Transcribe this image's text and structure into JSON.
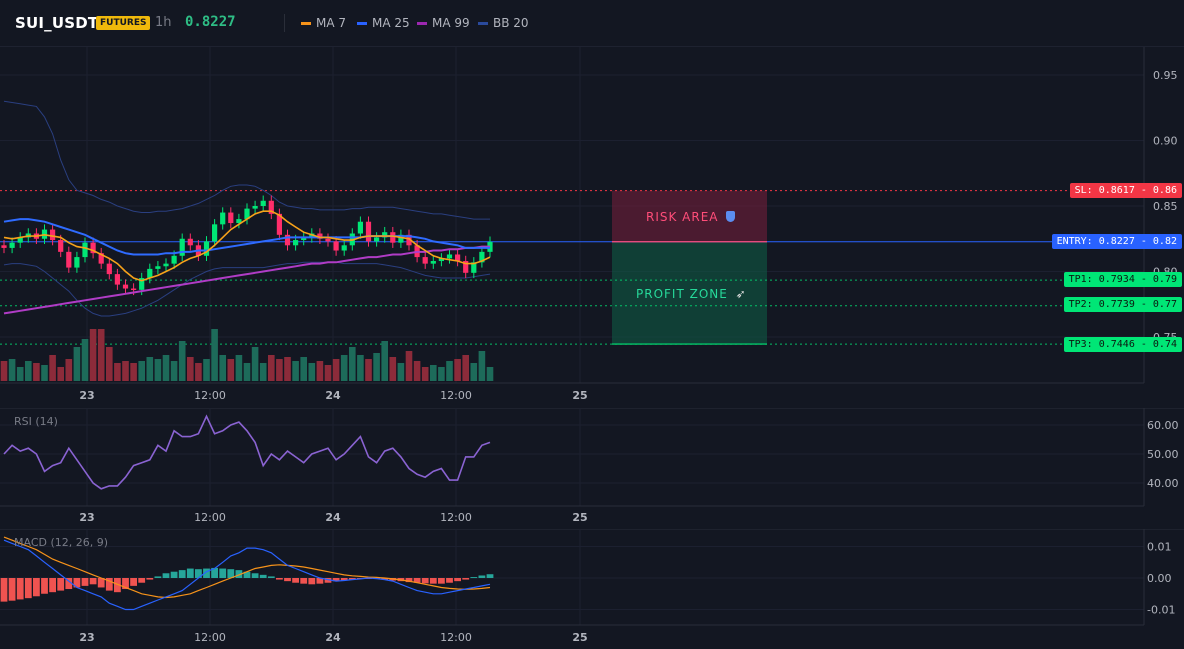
{
  "header": {
    "symbol": "SUI_USDT",
    "badge": "FUTURES",
    "timeframe": "1h",
    "last_price": "0.8227",
    "legend": [
      {
        "label": "MA 7",
        "color": "#f7931a"
      },
      {
        "label": "MA 25",
        "color": "#2962ff"
      },
      {
        "label": "MA 99",
        "color": "#9c27b0"
      },
      {
        "label": "BB 20",
        "color": "#2a4a9c"
      }
    ]
  },
  "zones": {
    "risk_label": "RISK AREA",
    "risk_icon": "shield-icon",
    "profit_label": "PROFIT ZONE",
    "profit_icon": "rocket-icon"
  },
  "levels": {
    "sl": "SL: 0.8617 - 0.86",
    "entry": "ENTRY: 0.8227 - 0.82",
    "tp1": "TP1: 0.7934 - 0.79",
    "tp2": "TP2: 0.7739 - 0.77",
    "tp3": "TP3: 0.7446 - 0.74",
    "colors": {
      "sl": "#f23645",
      "entry": "#2962ff",
      "tp": "#00e676"
    }
  },
  "rsi_label": "RSI (14)",
  "macd_label": "MACD (12, 26, 9)",
  "chart_data": [
    {
      "type": "candlestick",
      "title": "SUI_USDT",
      "xticks": [
        "23",
        "12:00",
        "24",
        "12:00",
        "25"
      ],
      "yticks": [
        "0.95",
        "0.90",
        "0.85",
        "0.80",
        "0.75"
      ],
      "ylim": [
        0.72,
        0.97
      ],
      "close": [
        0.818,
        0.822,
        0.826,
        0.829,
        0.825,
        0.832,
        0.824,
        0.815,
        0.803,
        0.811,
        0.822,
        0.814,
        0.806,
        0.798,
        0.79,
        0.787,
        0.786,
        0.795,
        0.802,
        0.804,
        0.806,
        0.812,
        0.825,
        0.82,
        0.812,
        0.823,
        0.836,
        0.845,
        0.837,
        0.84,
        0.848,
        0.85,
        0.854,
        0.844,
        0.828,
        0.82,
        0.824,
        0.826,
        0.829,
        0.825,
        0.823,
        0.816,
        0.82,
        0.829,
        0.838,
        0.823,
        0.826,
        0.83,
        0.822,
        0.828,
        0.82,
        0.811,
        0.806,
        0.808,
        0.81,
        0.813,
        0.808,
        0.799,
        0.807,
        0.815,
        0.8227
      ],
      "open": [
        0.82,
        0.818,
        0.822,
        0.826,
        0.829,
        0.825,
        0.832,
        0.824,
        0.815,
        0.803,
        0.811,
        0.822,
        0.814,
        0.806,
        0.798,
        0.79,
        0.787,
        0.786,
        0.795,
        0.802,
        0.804,
        0.806,
        0.812,
        0.825,
        0.82,
        0.812,
        0.823,
        0.836,
        0.845,
        0.837,
        0.84,
        0.848,
        0.85,
        0.854,
        0.844,
        0.828,
        0.82,
        0.824,
        0.826,
        0.829,
        0.825,
        0.823,
        0.816,
        0.82,
        0.829,
        0.838,
        0.823,
        0.826,
        0.83,
        0.822,
        0.828,
        0.82,
        0.811,
        0.806,
        0.808,
        0.81,
        0.813,
        0.808,
        0.799,
        0.807,
        0.815
      ],
      "volume": [
        20,
        22,
        14,
        20,
        18,
        16,
        26,
        14,
        22,
        34,
        42,
        52,
        52,
        34,
        18,
        20,
        18,
        20,
        24,
        22,
        26,
        20,
        40,
        24,
        18,
        22,
        52,
        26,
        22,
        26,
        18,
        34,
        18,
        26,
        22,
        24,
        20,
        24,
        18,
        20,
        16,
        22,
        26,
        34,
        26,
        22,
        28,
        40,
        24,
        18,
        30,
        20,
        14,
        16,
        14,
        20,
        22,
        26,
        18,
        30,
        14
      ],
      "ma7": [
        0.826,
        0.825,
        0.826,
        0.827,
        0.827,
        0.828,
        0.827,
        0.826,
        0.822,
        0.819,
        0.818,
        0.816,
        0.813,
        0.81,
        0.806,
        0.8,
        0.795,
        0.793,
        0.795,
        0.797,
        0.8,
        0.803,
        0.807,
        0.81,
        0.812,
        0.815,
        0.82,
        0.826,
        0.832,
        0.836,
        0.84,
        0.844,
        0.846,
        0.846,
        0.843,
        0.838,
        0.834,
        0.83,
        0.828,
        0.826,
        0.826,
        0.825,
        0.824,
        0.824,
        0.826,
        0.827,
        0.827,
        0.827,
        0.827,
        0.826,
        0.825,
        0.82,
        0.816,
        0.812,
        0.81,
        0.809,
        0.808,
        0.806,
        0.806,
        0.808,
        0.811
      ],
      "ma25": [
        0.838,
        0.839,
        0.84,
        0.84,
        0.839,
        0.838,
        0.836,
        0.834,
        0.832,
        0.83,
        0.828,
        0.825,
        0.822,
        0.819,
        0.816,
        0.814,
        0.813,
        0.813,
        0.813,
        0.813,
        0.814,
        0.814,
        0.815,
        0.815,
        0.816,
        0.816,
        0.817,
        0.818,
        0.819,
        0.82,
        0.821,
        0.822,
        0.823,
        0.824,
        0.825,
        0.826,
        0.826,
        0.826,
        0.826,
        0.826,
        0.826,
        0.826,
        0.826,
        0.826,
        0.826,
        0.827,
        0.827,
        0.827,
        0.827,
        0.827,
        0.827,
        0.826,
        0.825,
        0.823,
        0.822,
        0.821,
        0.82,
        0.818,
        0.818,
        0.818,
        0.818
      ],
      "ma99": [
        0.768,
        0.769,
        0.77,
        0.771,
        0.772,
        0.773,
        0.774,
        0.775,
        0.776,
        0.777,
        0.778,
        0.779,
        0.78,
        0.781,
        0.782,
        0.783,
        0.784,
        0.785,
        0.786,
        0.787,
        0.788,
        0.789,
        0.79,
        0.791,
        0.792,
        0.793,
        0.794,
        0.795,
        0.796,
        0.797,
        0.798,
        0.799,
        0.8,
        0.801,
        0.802,
        0.803,
        0.804,
        0.805,
        0.806,
        0.806,
        0.807,
        0.807,
        0.808,
        0.809,
        0.81,
        0.811,
        0.811,
        0.812,
        0.813,
        0.813,
        0.814,
        0.815,
        0.815,
        0.816,
        0.816,
        0.817,
        0.817,
        0.818,
        0.818,
        0.819,
        0.819
      ],
      "bb_upper": [
        0.93,
        0.929,
        0.928,
        0.927,
        0.926,
        0.918,
        0.905,
        0.885,
        0.87,
        0.862,
        0.86,
        0.858,
        0.855,
        0.853,
        0.85,
        0.848,
        0.846,
        0.845,
        0.845,
        0.846,
        0.846,
        0.847,
        0.848,
        0.85,
        0.852,
        0.855,
        0.858,
        0.862,
        0.865,
        0.866,
        0.866,
        0.865,
        0.862,
        0.858,
        0.853,
        0.85,
        0.849,
        0.848,
        0.848,
        0.847,
        0.847,
        0.847,
        0.847,
        0.848,
        0.848,
        0.849,
        0.849,
        0.849,
        0.849,
        0.848,
        0.847,
        0.846,
        0.845,
        0.844,
        0.844,
        0.843,
        0.842,
        0.841,
        0.84,
        0.84,
        0.84
      ],
      "bb_lower": [
        0.805,
        0.806,
        0.806,
        0.805,
        0.804,
        0.8,
        0.795,
        0.79,
        0.785,
        0.778,
        0.772,
        0.768,
        0.766,
        0.766,
        0.767,
        0.768,
        0.77,
        0.772,
        0.775,
        0.778,
        0.782,
        0.786,
        0.79,
        0.794,
        0.797,
        0.8,
        0.802,
        0.803,
        0.803,
        0.803,
        0.803,
        0.803,
        0.803,
        0.804,
        0.805,
        0.806,
        0.806,
        0.807,
        0.807,
        0.807,
        0.807,
        0.807,
        0.806,
        0.806,
        0.806,
        0.806,
        0.806,
        0.805,
        0.804,
        0.803,
        0.801,
        0.799,
        0.797,
        0.796,
        0.795,
        0.795,
        0.795,
        0.795,
        0.796,
        0.797,
        0.798
      ]
    },
    {
      "type": "line",
      "title": "RSI (14)",
      "xticks": [
        "23",
        "12:00",
        "24",
        "12:00",
        "25"
      ],
      "yticks": [
        "60.00",
        "50.00",
        "40.00"
      ],
      "ylim": [
        32,
        68
      ],
      "values": [
        50,
        53,
        51,
        52,
        50,
        44,
        46,
        47,
        52,
        48,
        44,
        40,
        38,
        39,
        39,
        42,
        46,
        47,
        48,
        53,
        51,
        58,
        56,
        56,
        57,
        63,
        57,
        58,
        60,
        61,
        58,
        54,
        46,
        50,
        48,
        51,
        49,
        47,
        50,
        51,
        52,
        48,
        50,
        53,
        56,
        49,
        47,
        51,
        52,
        49,
        45,
        43,
        42,
        44,
        45,
        41,
        41,
        49,
        49,
        53,
        54
      ]
    },
    {
      "type": "bar",
      "title": "MACD (12, 26, 9)",
      "xticks": [
        "23",
        "12:00",
        "24",
        "12:00",
        "25"
      ],
      "yticks": [
        "0.01",
        "0.00",
        "-0.01"
      ],
      "ylim": [
        -0.014,
        0.014
      ],
      "histogram": [
        -0.0075,
        -0.0072,
        -0.0068,
        -0.0064,
        -0.0058,
        -0.005,
        -0.0045,
        -0.004,
        -0.0035,
        -0.003,
        -0.0025,
        -0.002,
        -0.003,
        -0.004,
        -0.0045,
        -0.0035,
        -0.0025,
        -0.0015,
        -0.0005,
        0.0005,
        0.0015,
        0.002,
        0.0025,
        0.003,
        0.0028,
        0.003,
        0.0032,
        0.003,
        0.0028,
        0.0025,
        0.002,
        0.0015,
        0.001,
        0.0005,
        -0.0005,
        -0.001,
        -0.0015,
        -0.0018,
        -0.002,
        -0.0018,
        -0.0015,
        -0.001,
        -0.0008,
        -0.0005,
        -0.0003,
        -0.0002,
        -0.0003,
        -0.0005,
        -0.0008,
        -0.001,
        -0.0013,
        -0.0015,
        -0.0017,
        -0.0018,
        -0.0018,
        -0.0015,
        -0.001,
        -0.0005,
        0.0003,
        0.0008,
        0.0012
      ],
      "macd": [
        0.012,
        0.011,
        0.01,
        0.009,
        0.007,
        0.005,
        0.003,
        0.001,
        -0.001,
        -0.003,
        -0.004,
        -0.005,
        -0.006,
        -0.008,
        -0.009,
        -0.01,
        -0.01,
        -0.009,
        -0.008,
        -0.007,
        -0.006,
        -0.005,
        -0.004,
        -0.002,
        0.0,
        0.002,
        0.003,
        0.005,
        0.007,
        0.008,
        0.0095,
        0.0095,
        0.009,
        0.008,
        0.006,
        0.004,
        0.003,
        0.002,
        0.001,
        0.0,
        -0.0005,
        -0.001,
        -0.0008,
        -0.0005,
        -0.0003,
        0.0,
        -0.0002,
        -0.0005,
        -0.001,
        -0.002,
        -0.003,
        -0.004,
        -0.0045,
        -0.005,
        -0.005,
        -0.0045,
        -0.004,
        -0.0035,
        -0.003,
        -0.0025,
        -0.002
      ],
      "signal": [
        0.013,
        0.012,
        0.011,
        0.01,
        0.009,
        0.0075,
        0.006,
        0.005,
        0.004,
        0.003,
        0.002,
        0.001,
        0.0,
        -0.001,
        -0.002,
        -0.003,
        -0.004,
        -0.005,
        -0.0055,
        -0.006,
        -0.0062,
        -0.006,
        -0.0055,
        -0.005,
        -0.004,
        -0.003,
        -0.002,
        -0.001,
        0.0,
        0.001,
        0.002,
        0.003,
        0.0035,
        0.004,
        0.0042,
        0.004,
        0.0038,
        0.0035,
        0.003,
        0.0025,
        0.002,
        0.0015,
        0.001,
        0.0007,
        0.0005,
        0.0003,
        0.0002,
        0.0,
        -0.0003,
        -0.0006,
        -0.001,
        -0.0015,
        -0.002,
        -0.0025,
        -0.003,
        -0.0033,
        -0.0035,
        -0.0036,
        -0.0035,
        -0.0033,
        -0.003
      ]
    }
  ]
}
